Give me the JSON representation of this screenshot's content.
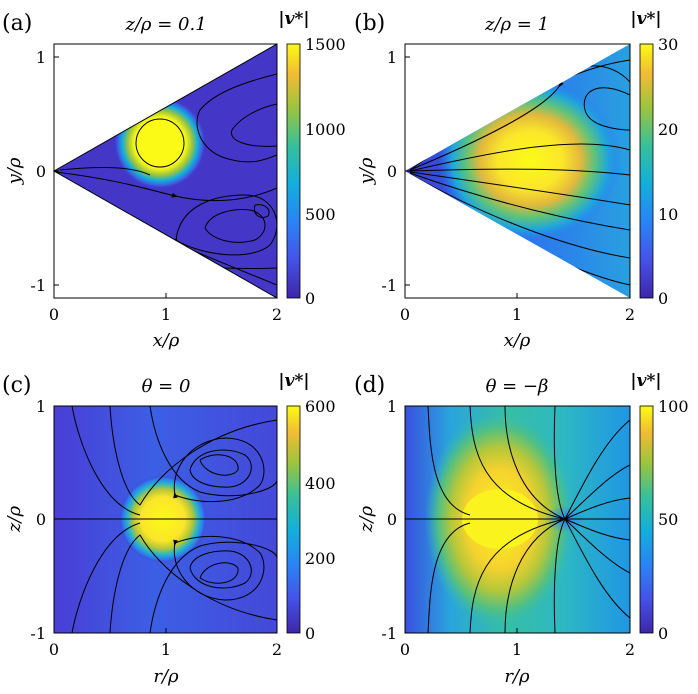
{
  "chart_data": [
    {
      "type": "heatmap",
      "panel_label": "(a)",
      "title": "z/ρ = 0.1",
      "xlabel": "x/ρ",
      "ylabel": "y/ρ",
      "xlim": [
        0,
        2
      ],
      "ylim": [
        -1.15,
        1.15
      ],
      "x_ticks": [
        "0",
        "1",
        "2"
      ],
      "y_ticks": [
        "-1",
        "0",
        "1"
      ],
      "colorbar": {
        "label": "|v*|",
        "min": 0,
        "max": 1500,
        "ticks": [
          "0",
          "500",
          "1000",
          "1500"
        ]
      },
      "domain": "wedge",
      "hotspot": {
        "x": 0.95,
        "y": 0.25,
        "value": 1500
      },
      "streamlines": true
    },
    {
      "type": "heatmap",
      "panel_label": "(b)",
      "title": "z/ρ = 1",
      "xlabel": "x/ρ",
      "ylabel": "y/ρ",
      "xlim": [
        0,
        2
      ],
      "ylim": [
        -1.15,
        1.15
      ],
      "x_ticks": [
        "0",
        "1",
        "2"
      ],
      "y_ticks": [
        "-1",
        "0",
        "1"
      ],
      "colorbar": {
        "label": "|v*|",
        "min": 0,
        "max": 30,
        "ticks": [
          "0",
          "10",
          "20",
          "30"
        ]
      },
      "domain": "wedge",
      "hotspot": {
        "x": 1.1,
        "y": 0.1,
        "value": 30
      },
      "streamlines": true
    },
    {
      "type": "heatmap",
      "panel_label": "(c)",
      "title": "θ = 0",
      "xlabel": "r/ρ",
      "ylabel": "z/ρ",
      "xlim": [
        0,
        2
      ],
      "ylim": [
        -1,
        1
      ],
      "x_ticks": [
        "0",
        "1",
        "2"
      ],
      "y_ticks": [
        "-1",
        "0",
        "1"
      ],
      "colorbar": {
        "label": "|v*|",
        "min": 0,
        "max": 600,
        "ticks": [
          "0",
          "200",
          "400",
          "600"
        ]
      },
      "domain": "rect",
      "hotspot": {
        "x": 0.98,
        "y": 0.0,
        "value": 600
      },
      "streamlines": true
    },
    {
      "type": "heatmap",
      "panel_label": "(d)",
      "title": "θ = −β",
      "xlabel": "r/ρ",
      "ylabel": "z/ρ",
      "xlim": [
        0,
        2
      ],
      "ylim": [
        -1,
        1
      ],
      "x_ticks": [
        "0",
        "1",
        "2"
      ],
      "y_ticks": [
        "-1",
        "0",
        "1"
      ],
      "colorbar": {
        "label": "|v*|",
        "min": 0,
        "max": 100,
        "ticks": [
          "0",
          "50",
          "100"
        ]
      },
      "domain": "rect",
      "hotspot": {
        "x": 0.85,
        "y": 0.0,
        "value": 100
      },
      "streamlines": true
    }
  ],
  "colors": {
    "low": "#3e26a8",
    "mid": "#23b2d0",
    "high": "#fbfa17"
  }
}
